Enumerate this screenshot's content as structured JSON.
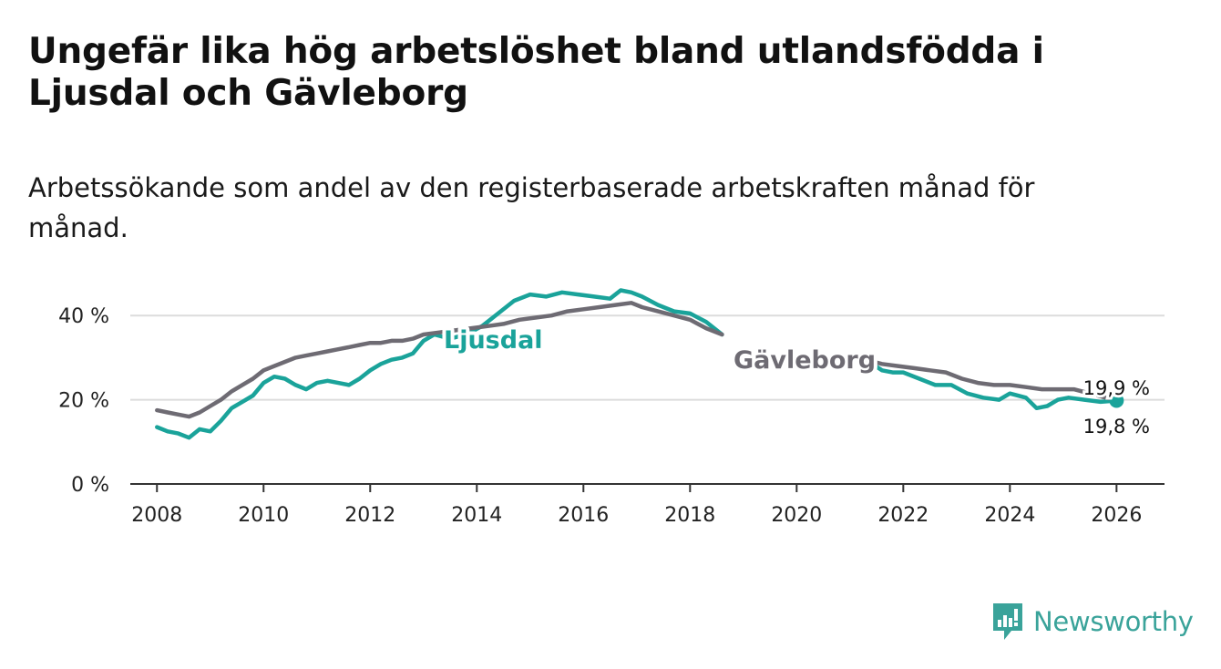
{
  "title": "Ungefär lika hög arbetslöshet bland utlandsfödda i Ljusdal och Gävleborg",
  "subtitle": "Arbetssökande som andel av den registerbaserade arbetskraften månad för månad.",
  "logo": {
    "text": "Newsworthy",
    "icon": "newsworthy-chart-icon",
    "color": "#3aa39a"
  },
  "colors": {
    "ljusdal": "#1aa39a",
    "gavleborg": "#6e6b73",
    "grid": "#dcdcdc",
    "axis": "#333333"
  },
  "chart_data": {
    "type": "line",
    "title": "Ungefär lika hög arbetslöshet bland utlandsfödda i Ljusdal och Gävleborg",
    "xlabel": "",
    "ylabel": "",
    "xlim": [
      2007.5,
      2026.9
    ],
    "ylim": [
      0,
      50
    ],
    "x_ticks": [
      2008,
      2010,
      2012,
      2014,
      2016,
      2018,
      2020,
      2022,
      2024,
      2026
    ],
    "x_tick_labels": [
      "2008",
      "2010",
      "2012",
      "2014",
      "2016",
      "2018",
      "2020",
      "2022",
      "2024",
      "2026"
    ],
    "y_ticks": [
      0,
      20,
      40
    ],
    "y_tick_labels": [
      "0 %",
      "20 %",
      "40 %"
    ],
    "grid": true,
    "series": [
      {
        "name": "Ljusdal",
        "label": "Ljusdal",
        "end_label": "19,8 %",
        "points": [
          [
            2008.0,
            13.5
          ],
          [
            2008.2,
            12.5
          ],
          [
            2008.4,
            12.0
          ],
          [
            2008.6,
            11.0
          ],
          [
            2008.8,
            13.0
          ],
          [
            2009.0,
            12.5
          ],
          [
            2009.2,
            15.0
          ],
          [
            2009.4,
            18.0
          ],
          [
            2009.6,
            19.5
          ],
          [
            2009.8,
            21.0
          ],
          [
            2010.0,
            24.0
          ],
          [
            2010.2,
            25.5
          ],
          [
            2010.4,
            25.0
          ],
          [
            2010.6,
            23.5
          ],
          [
            2010.8,
            22.5
          ],
          [
            2011.0,
            24.0
          ],
          [
            2011.2,
            24.5
          ],
          [
            2011.4,
            24.0
          ],
          [
            2011.6,
            23.5
          ],
          [
            2011.8,
            25.0
          ],
          [
            2012.0,
            27.0
          ],
          [
            2012.2,
            28.5
          ],
          [
            2012.4,
            29.5
          ],
          [
            2012.6,
            30.0
          ],
          [
            2012.8,
            31.0
          ],
          [
            2013.0,
            34.0
          ],
          [
            2013.2,
            35.5
          ],
          [
            2013.5,
            34.5
          ],
          [
            2013.8,
            35.5
          ],
          [
            2014.1,
            37.5
          ],
          [
            2014.4,
            40.5
          ],
          [
            2014.7,
            43.5
          ],
          [
            2015.0,
            45.0
          ],
          [
            2015.3,
            44.5
          ],
          [
            2015.6,
            45.5
          ],
          [
            2015.9,
            45.0
          ],
          [
            2016.2,
            44.5
          ],
          [
            2016.5,
            44.0
          ],
          [
            2016.7,
            46.0
          ],
          [
            2016.9,
            45.5
          ],
          [
            2017.1,
            44.5
          ],
          [
            2017.4,
            42.5
          ],
          [
            2017.7,
            41.0
          ],
          [
            2018.0,
            40.5
          ],
          [
            2018.3,
            38.5
          ],
          [
            2018.5,
            36.5
          ],
          [
            2018.6,
            35.5
          ],
          [
            2021.3,
            29.5
          ],
          [
            2021.6,
            27.0
          ],
          [
            2021.8,
            26.5
          ],
          [
            2022.0,
            26.5
          ],
          [
            2022.3,
            25.0
          ],
          [
            2022.6,
            23.5
          ],
          [
            2022.9,
            23.5
          ],
          [
            2023.2,
            21.5
          ],
          [
            2023.5,
            20.5
          ],
          [
            2023.8,
            20.0
          ],
          [
            2024.0,
            21.5
          ],
          [
            2024.3,
            20.5
          ],
          [
            2024.5,
            18.0
          ],
          [
            2024.7,
            18.5
          ],
          [
            2024.9,
            20.0
          ],
          [
            2025.1,
            20.5
          ],
          [
            2025.4,
            20.0
          ],
          [
            2025.7,
            19.5
          ],
          [
            2026.0,
            19.8
          ]
        ]
      },
      {
        "name": "Gävleborg",
        "label": "Gävleborg",
        "end_label": "19,9 %",
        "points": [
          [
            2008.0,
            17.5
          ],
          [
            2008.2,
            17.0
          ],
          [
            2008.4,
            16.5
          ],
          [
            2008.6,
            16.0
          ],
          [
            2008.8,
            17.0
          ],
          [
            2009.0,
            18.5
          ],
          [
            2009.2,
            20.0
          ],
          [
            2009.4,
            22.0
          ],
          [
            2009.6,
            23.5
          ],
          [
            2009.8,
            25.0
          ],
          [
            2010.0,
            27.0
          ],
          [
            2010.2,
            28.0
          ],
          [
            2010.4,
            29.0
          ],
          [
            2010.6,
            30.0
          ],
          [
            2010.8,
            30.5
          ],
          [
            2011.0,
            31.0
          ],
          [
            2011.2,
            31.5
          ],
          [
            2011.4,
            32.0
          ],
          [
            2011.6,
            32.5
          ],
          [
            2011.8,
            33.0
          ],
          [
            2012.0,
            33.5
          ],
          [
            2012.2,
            33.5
          ],
          [
            2012.4,
            34.0
          ],
          [
            2012.6,
            34.0
          ],
          [
            2012.8,
            34.5
          ],
          [
            2013.0,
            35.5
          ],
          [
            2013.3,
            36.0
          ],
          [
            2013.6,
            36.5
          ],
          [
            2013.9,
            37.0
          ],
          [
            2014.2,
            37.5
          ],
          [
            2014.5,
            38.0
          ],
          [
            2014.8,
            39.0
          ],
          [
            2015.1,
            39.5
          ],
          [
            2015.4,
            40.0
          ],
          [
            2015.7,
            41.0
          ],
          [
            2016.0,
            41.5
          ],
          [
            2016.3,
            42.0
          ],
          [
            2016.6,
            42.5
          ],
          [
            2016.9,
            43.0
          ],
          [
            2017.1,
            42.0
          ],
          [
            2017.4,
            41.0
          ],
          [
            2017.7,
            40.0
          ],
          [
            2018.0,
            39.0
          ],
          [
            2018.3,
            37.0
          ],
          [
            2018.6,
            35.5
          ],
          [
            2021.3,
            29.5
          ],
          [
            2021.6,
            28.5
          ],
          [
            2021.9,
            28.0
          ],
          [
            2022.2,
            27.5
          ],
          [
            2022.5,
            27.0
          ],
          [
            2022.8,
            26.5
          ],
          [
            2023.1,
            25.0
          ],
          [
            2023.4,
            24.0
          ],
          [
            2023.7,
            23.5
          ],
          [
            2024.0,
            23.5
          ],
          [
            2024.3,
            23.0
          ],
          [
            2024.6,
            22.5
          ],
          [
            2024.9,
            22.5
          ],
          [
            2025.2,
            22.5
          ],
          [
            2025.5,
            21.5
          ],
          [
            2025.8,
            20.5
          ],
          [
            2026.0,
            19.9
          ]
        ]
      }
    ]
  }
}
